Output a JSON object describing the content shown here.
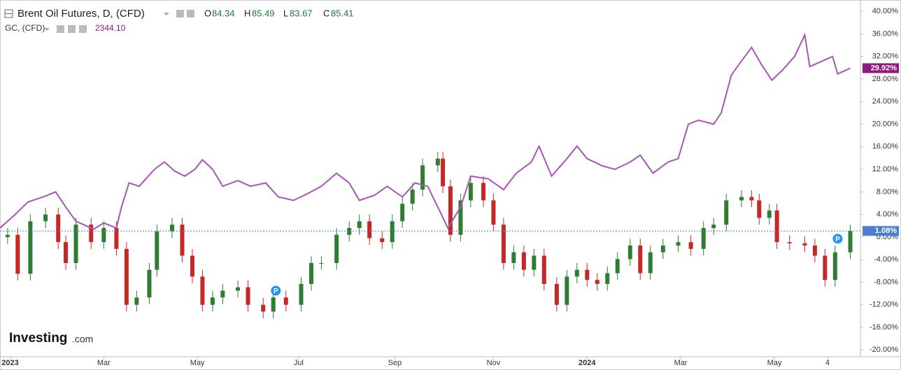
{
  "chart_data": {
    "type": "candlestick-compare",
    "ohlc": [
      {
        "label": "O",
        "value": "84.34"
      },
      {
        "label": "H",
        "value": "85.49"
      },
      {
        "label": "L",
        "value": "83.67"
      },
      {
        "label": "C",
        "value": "85.41"
      }
    ],
    "logo": [
      "Investing",
      ".com"
    ],
    "annotations": [
      {
        "text": "P",
        "x": 109,
        "y": -9.5
      },
      {
        "text": "P",
        "x": 331,
        "y": -0.3
      }
    ],
    "xlim": [
      0,
      340
    ],
    "xticks": [
      {
        "value": 4,
        "label": "2023"
      },
      {
        "value": 41,
        "label": "Mar"
      },
      {
        "value": 78,
        "label": "May"
      },
      {
        "value": 118,
        "label": "Jul"
      },
      {
        "value": 156,
        "label": "Sep"
      },
      {
        "value": 195,
        "label": "Nov"
      },
      {
        "value": 232,
        "label": "2024"
      },
      {
        "value": 269,
        "label": "Mar"
      },
      {
        "value": 306,
        "label": "May"
      },
      {
        "value": 327,
        "label": "4"
      }
    ],
    "ylim": [
      -21.2,
      42
    ],
    "yticks": [
      {
        "value": -20,
        "label": "-20.00%"
      },
      {
        "value": -16,
        "label": "-16.00%"
      },
      {
        "value": -12,
        "label": "-12.00%"
      },
      {
        "value": -8,
        "label": "-8.00%"
      },
      {
        "value": -4,
        "label": "-4.00%"
      },
      {
        "value": 0,
        "label": "0.00%"
      },
      {
        "value": 4,
        "label": "4.00%"
      },
      {
        "value": 8,
        "label": "8.00%"
      },
      {
        "value": 12,
        "label": "12.00%"
      },
      {
        "value": 16,
        "label": "16.00%"
      },
      {
        "value": 20,
        "label": "20.00%"
      },
      {
        "value": 24,
        "label": "24.00%"
      },
      {
        "value": 28,
        "label": "28.00%"
      },
      {
        "value": 32,
        "label": "32.00%"
      },
      {
        "value": 36,
        "label": "36.00%"
      },
      {
        "value": 40,
        "label": "40.00%"
      }
    ],
    "grid": false,
    "series": [
      {
        "name": "Brent Oil Futures, D, (CFD)",
        "kind": "candlestick",
        "up_color": "#2e7d32",
        "down_color": "#c62828",
        "label_color": "#4a7fd4",
        "last_label": "1.08%",
        "x": [
          3,
          7,
          12,
          18,
          23,
          26,
          30,
          36,
          41,
          46,
          50,
          54,
          59,
          62,
          68,
          72,
          76,
          80,
          84,
          88,
          94,
          98,
          104,
          108,
          113,
          119,
          123,
          127,
          133,
          138,
          142,
          146,
          151,
          155,
          159,
          163,
          167,
          173,
          175,
          178,
          182,
          186,
          191,
          195,
          199,
          203,
          207,
          211,
          215,
          220,
          224,
          228,
          232,
          236,
          240,
          244,
          249,
          253,
          257,
          262,
          268,
          273,
          278,
          282,
          287,
          293,
          297,
          300,
          304,
          307,
          312,
          318,
          322,
          326,
          330,
          336
        ],
        "open": [
          0,
          0.4,
          -6.5,
          2.8,
          4,
          -0.9,
          -4.6,
          2.2,
          -0.9,
          1.6,
          -2.1,
          -12,
          -10.7,
          -5.8,
          1,
          2.2,
          -3.3,
          -7,
          -12,
          -10.7,
          -9.5,
          -8.9,
          -12,
          -13.2,
          -10.7,
          -12,
          -8.3,
          -4.6,
          -4.6,
          0.4,
          1.6,
          2.8,
          -0.2,
          -0.9,
          2.8,
          5.9,
          8.4,
          12.7,
          13.9,
          9,
          0.4,
          6.5,
          9.6,
          6.5,
          2.2,
          -4.6,
          -2.7,
          -5.8,
          -3.3,
          -8.3,
          -12,
          -7,
          -5.8,
          -7.6,
          -8.3,
          -6.4,
          -3.9,
          -1.5,
          -6.4,
          -2.7,
          -1.5,
          -0.9,
          -2.1,
          1.6,
          2.2,
          6.5,
          7.1,
          6.5,
          3.4,
          4.7,
          -0.9,
          -1.1,
          -1.5,
          -3.3,
          -7.6,
          -2.7
        ],
        "high": [
          1.6,
          1.6,
          4,
          5.2,
          5.2,
          0.3,
          3.4,
          3.4,
          2.8,
          2.8,
          -0.9,
          -9.5,
          -4.6,
          2.2,
          3.4,
          3.4,
          -2.1,
          -5.8,
          -9.5,
          -8.3,
          -7.7,
          -7.7,
          -10.8,
          -9.5,
          -9.5,
          -7.1,
          -3.4,
          -3.4,
          1.6,
          2.8,
          4,
          4,
          1,
          4,
          7.1,
          9.6,
          13.9,
          15.1,
          15.1,
          10.2,
          7.7,
          10.8,
          10.8,
          7.7,
          3.4,
          -1.5,
          -1.5,
          -2.1,
          -2.1,
          -7.1,
          -5.8,
          -4.6,
          -4.6,
          -6.4,
          -5.2,
          -2.7,
          -0.3,
          -0.3,
          -1.5,
          -0.3,
          0.3,
          0.3,
          2.8,
          3.4,
          7.7,
          8.3,
          8.3,
          7.7,
          5.9,
          5.9,
          0.3,
          0.1,
          -0.3,
          -2.1,
          -1.5,
          2.2
        ],
        "low": [
          -1.2,
          -7.7,
          -7.7,
          1.6,
          -2.1,
          -5.8,
          -5.8,
          -2.1,
          -2.1,
          -3.3,
          -13.2,
          -13.2,
          -11.9,
          -7,
          -0.2,
          -4.5,
          -8.2,
          -13.2,
          -13.2,
          -11.9,
          -10.7,
          -13.2,
          -14.4,
          -14.4,
          -13.2,
          -13.2,
          -9.5,
          -5.8,
          -5.8,
          -0.8,
          0.4,
          -1.4,
          -2.1,
          -2.1,
          1.6,
          4.7,
          7.2,
          11.5,
          7.8,
          -0.8,
          -0.8,
          5.3,
          5.3,
          1,
          -5.8,
          -5.8,
          -7,
          -7,
          -9.5,
          -13.2,
          -13.2,
          -8.2,
          -8.8,
          -9.5,
          -9.5,
          -7.6,
          -5.1,
          -7.6,
          -7.6,
          -3.9,
          -2.7,
          -3.3,
          -3.3,
          0.4,
          1,
          5.3,
          5.3,
          2.2,
          2.2,
          -2.1,
          -2.3,
          -2.7,
          -4.5,
          -8.8,
          -8.8,
          -3.9
        ],
        "close": [
          0.4,
          -6.5,
          2.8,
          4,
          -0.9,
          -4.6,
          2.2,
          -0.9,
          1.6,
          -2.1,
          -12,
          -10.7,
          -5.8,
          1,
          2.2,
          -3.3,
          -7,
          -12,
          -10.7,
          -9.5,
          -8.9,
          -12,
          -13.2,
          -10.7,
          -12,
          -8.3,
          -4.6,
          -4.6,
          0.4,
          1.6,
          2.8,
          -0.2,
          -0.9,
          2.8,
          5.9,
          8.4,
          12.7,
          13.9,
          9,
          0.4,
          6.5,
          9.6,
          6.5,
          2.2,
          -4.6,
          -2.7,
          -5.8,
          -3.3,
          -8.3,
          -12,
          -7,
          -5.8,
          -7.6,
          -8.3,
          -6.4,
          -3.9,
          -1.5,
          -6.4,
          -2.7,
          -1.5,
          -0.9,
          -2.1,
          1.6,
          2.2,
          6.5,
          7.1,
          6.5,
          3.4,
          4.7,
          -0.9,
          -1.1,
          -1.5,
          -3.3,
          -7.6,
          -2.7,
          1.08
        ]
      },
      {
        "name": "GC, (CFD)",
        "kind": "line",
        "color": "#a855b5",
        "label_color": "#8e1a7e",
        "price": "2344.10",
        "last_label": "29.92%",
        "x": [
          0,
          6,
          11,
          17,
          22,
          26,
          30,
          37,
          41,
          46,
          48,
          51,
          55,
          61,
          65,
          69,
          73,
          77,
          80,
          84,
          88,
          94,
          99,
          105,
          110,
          116,
          122,
          127,
          133,
          138,
          142,
          148,
          153,
          159,
          164,
          169,
          173,
          177,
          182,
          186,
          193,
          199,
          204,
          210,
          213,
          218,
          224,
          228,
          232,
          238,
          243,
          249,
          253,
          258,
          264,
          268,
          272,
          276,
          282,
          285,
          289,
          293,
          297,
          301,
          305,
          309,
          314,
          318,
          320,
          325,
          329,
          331,
          336
        ],
        "values": [
          1.6,
          4,
          6.2,
          7.1,
          8,
          5.3,
          2.8,
          1.4,
          2.5,
          1.6,
          5.3,
          9.6,
          9,
          12,
          13.3,
          11.7,
          10.8,
          12,
          13.7,
          12,
          9,
          10,
          9,
          9.6,
          7.1,
          6.5,
          7.8,
          9,
          11.3,
          9.6,
          6.5,
          7.4,
          9,
          7.1,
          9.6,
          9,
          5.3,
          1.6,
          5.3,
          10.8,
          10.3,
          8.4,
          11.3,
          13.3,
          16.1,
          10.8,
          13.9,
          16.1,
          13.9,
          12.6,
          12,
          13.3,
          14.5,
          11.3,
          13.3,
          13.9,
          20,
          20.7,
          20,
          22,
          28.7,
          31.2,
          33.6,
          30.5,
          27.8,
          29.5,
          32,
          35.8,
          30.2,
          31.2,
          32,
          28.9,
          29.92
        ]
      }
    ]
  }
}
